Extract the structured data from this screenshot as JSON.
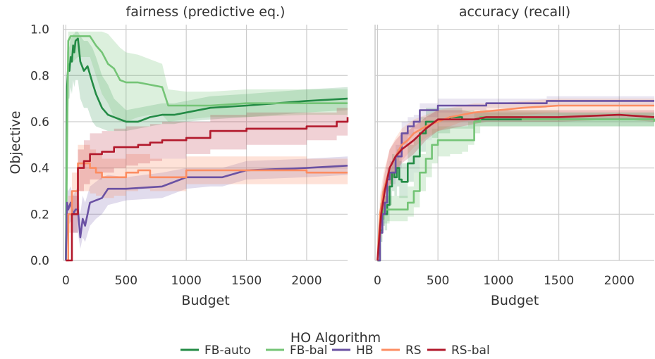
{
  "chart_data": [
    {
      "type": "line",
      "title": "fairness (predictive eq.)",
      "xlabel": "Budget",
      "ylabel": "Objective",
      "xlim": [
        -20,
        2340
      ],
      "ylim": [
        0,
        1.02
      ],
      "xticks": [
        0,
        500,
        1000,
        1500,
        2000
      ],
      "yticks": [
        0.0,
        0.2,
        0.4,
        0.6,
        0.8,
        1.0
      ],
      "xtick_labels": [
        "0",
        "500",
        "1000",
        "1500",
        "2000"
      ],
      "ytick_labels": [
        "0.0",
        "0.2",
        "0.4",
        "0.6",
        "0.8",
        "1.0"
      ],
      "grid": true,
      "series": [
        {
          "name": "FB-auto",
          "color": "#238b45",
          "band_opacity": 0.2,
          "x": [
            0,
            10,
            20,
            30,
            40,
            50,
            60,
            70,
            80,
            100,
            120,
            150,
            180,
            220,
            250,
            300,
            350,
            400,
            500,
            600,
            700,
            800,
            900,
            1000,
            1200,
            1500,
            2000,
            2340
          ],
          "y": [
            0.0,
            0.75,
            0.85,
            0.82,
            0.88,
            0.86,
            0.93,
            0.9,
            0.95,
            0.96,
            0.86,
            0.82,
            0.84,
            0.77,
            0.72,
            0.66,
            0.63,
            0.62,
            0.6,
            0.6,
            0.62,
            0.63,
            0.63,
            0.64,
            0.66,
            0.67,
            0.69,
            0.7
          ],
          "lower": [
            0.0,
            0.55,
            0.7,
            0.7,
            0.75,
            0.72,
            0.78,
            0.75,
            0.78,
            0.78,
            0.7,
            0.66,
            0.66,
            0.6,
            0.58,
            0.57,
            0.56,
            0.56,
            0.56,
            0.57,
            0.58,
            0.59,
            0.59,
            0.6,
            0.61,
            0.62,
            0.64,
            0.65
          ],
          "upper": [
            0.0,
            0.9,
            0.95,
            0.92,
            0.97,
            0.96,
            0.98,
            0.98,
            0.99,
            0.99,
            0.97,
            0.95,
            0.95,
            0.92,
            0.88,
            0.8,
            0.76,
            0.7,
            0.65,
            0.66,
            0.67,
            0.68,
            0.68,
            0.69,
            0.71,
            0.72,
            0.74,
            0.75
          ]
        },
        {
          "name": "FB-bal",
          "color": "#74c476",
          "band_opacity": 0.25,
          "x": [
            0,
            20,
            40,
            60,
            100,
            200,
            250,
            300,
            350,
            400,
            450,
            500,
            600,
            700,
            800,
            850,
            1000,
            1200,
            1500,
            2000,
            2340
          ],
          "y": [
            0.0,
            0.95,
            0.97,
            0.97,
            0.97,
            0.97,
            0.93,
            0.9,
            0.85,
            0.83,
            0.78,
            0.77,
            0.77,
            0.76,
            0.75,
            0.67,
            0.67,
            0.67,
            0.68,
            0.68,
            0.68
          ],
          "lower": [
            0.0,
            0.8,
            0.85,
            0.86,
            0.88,
            0.88,
            0.8,
            0.72,
            0.68,
            0.62,
            0.6,
            0.6,
            0.62,
            0.63,
            0.63,
            0.6,
            0.61,
            0.62,
            0.62,
            0.63,
            0.63
          ],
          "upper": [
            0.0,
            0.99,
            0.99,
            0.99,
            0.99,
            0.99,
            0.99,
            0.99,
            0.98,
            0.95,
            0.92,
            0.9,
            0.89,
            0.87,
            0.85,
            0.74,
            0.73,
            0.73,
            0.74,
            0.74,
            0.74
          ]
        },
        {
          "name": "HB",
          "color": "#6a51a3",
          "band_opacity": 0.2,
          "x": [
            0,
            10,
            20,
            40,
            60,
            80,
            100,
            120,
            140,
            160,
            200,
            250,
            300,
            350,
            500,
            800,
            1000,
            1200,
            1300,
            1500,
            2000,
            2340
          ],
          "y": [
            0.0,
            0.25,
            0.22,
            0.25,
            0.2,
            0.22,
            0.22,
            0.1,
            0.18,
            0.15,
            0.25,
            0.26,
            0.27,
            0.31,
            0.31,
            0.32,
            0.36,
            0.36,
            0.36,
            0.39,
            0.4,
            0.41
          ],
          "lower": [
            0.0,
            0.18,
            0.15,
            0.17,
            0.12,
            0.12,
            0.12,
            0.05,
            0.1,
            0.08,
            0.15,
            0.18,
            0.2,
            0.24,
            0.26,
            0.27,
            0.31,
            0.32,
            0.32,
            0.35,
            0.36,
            0.37
          ],
          "upper": [
            0.0,
            0.32,
            0.3,
            0.32,
            0.28,
            0.3,
            0.32,
            0.2,
            0.28,
            0.25,
            0.32,
            0.34,
            0.36,
            0.37,
            0.36,
            0.38,
            0.4,
            0.4,
            0.4,
            0.43,
            0.44,
            0.45
          ]
        },
        {
          "name": "RS",
          "color": "#fc8d62",
          "band_opacity": 0.25,
          "x": [
            0,
            20,
            50,
            100,
            150,
            200,
            250,
            300,
            400,
            500,
            600,
            700,
            800,
            1000,
            1200,
            1500,
            2000,
            2340
          ],
          "y": [
            0.0,
            0.2,
            0.3,
            0.42,
            0.42,
            0.4,
            0.38,
            0.36,
            0.36,
            0.38,
            0.39,
            0.36,
            0.36,
            0.39,
            0.39,
            0.39,
            0.38,
            0.38
          ],
          "lower": [
            0.0,
            0.12,
            0.2,
            0.3,
            0.3,
            0.29,
            0.28,
            0.27,
            0.28,
            0.3,
            0.31,
            0.3,
            0.3,
            0.33,
            0.33,
            0.33,
            0.33,
            0.33
          ],
          "upper": [
            0.0,
            0.28,
            0.38,
            0.5,
            0.5,
            0.48,
            0.46,
            0.44,
            0.44,
            0.46,
            0.46,
            0.44,
            0.44,
            0.45,
            0.45,
            0.45,
            0.44,
            0.44
          ],
          "step": true
        },
        {
          "name": "RS-bal",
          "color": "#b2182b",
          "band_opacity": 0.2,
          "x": [
            0,
            50,
            100,
            150,
            200,
            300,
            400,
            500,
            600,
            700,
            800,
            1000,
            1200,
            1500,
            2000,
            2250,
            2340
          ],
          "y": [
            0.0,
            0.2,
            0.4,
            0.43,
            0.46,
            0.47,
            0.49,
            0.49,
            0.5,
            0.51,
            0.52,
            0.53,
            0.56,
            0.57,
            0.58,
            0.6,
            0.62
          ],
          "lower": [
            0.0,
            0.12,
            0.3,
            0.33,
            0.35,
            0.38,
            0.4,
            0.41,
            0.42,
            0.43,
            0.44,
            0.46,
            0.48,
            0.5,
            0.52,
            0.54,
            0.56
          ],
          "upper": [
            0.0,
            0.28,
            0.48,
            0.52,
            0.55,
            0.56,
            0.57,
            0.58,
            0.58,
            0.59,
            0.6,
            0.6,
            0.63,
            0.64,
            0.64,
            0.66,
            0.68
          ],
          "step": true
        }
      ]
    },
    {
      "type": "line",
      "title": "accuracy (recall)",
      "xlabel": "Budget",
      "ylabel": "",
      "xlim": [
        -20,
        2290
      ],
      "ylim": [
        0,
        1.02
      ],
      "xticks": [
        0,
        500,
        1000,
        1500,
        2000
      ],
      "yticks": [
        0.0,
        0.2,
        0.4,
        0.6,
        0.8,
        1.0
      ],
      "xtick_labels": [
        "0",
        "500",
        "1000",
        "1500",
        "2000"
      ],
      "grid": true,
      "series": [
        {
          "name": "FB-auto",
          "color": "#238b45",
          "band_opacity": 0.2,
          "x": [
            0,
            20,
            40,
            60,
            80,
            100,
            120,
            140,
            160,
            180,
            200,
            250,
            300,
            350,
            400,
            450,
            500,
            600,
            700,
            800,
            1000,
            1200,
            1500,
            2000,
            2290
          ],
          "y": [
            0.0,
            0.13,
            0.22,
            0.2,
            0.24,
            0.32,
            0.38,
            0.36,
            0.4,
            0.35,
            0.34,
            0.42,
            0.45,
            0.55,
            0.6,
            0.6,
            0.61,
            0.62,
            0.61,
            0.61,
            0.61,
            0.61,
            0.61,
            0.61,
            0.61
          ],
          "lower": [
            0.0,
            0.08,
            0.15,
            0.13,
            0.17,
            0.24,
            0.3,
            0.28,
            0.32,
            0.27,
            0.27,
            0.34,
            0.38,
            0.47,
            0.52,
            0.53,
            0.55,
            0.57,
            0.57,
            0.58,
            0.58,
            0.58,
            0.58,
            0.58,
            0.58
          ],
          "upper": [
            0.0,
            0.2,
            0.3,
            0.28,
            0.32,
            0.4,
            0.46,
            0.44,
            0.48,
            0.43,
            0.42,
            0.5,
            0.53,
            0.62,
            0.66,
            0.66,
            0.66,
            0.66,
            0.65,
            0.64,
            0.64,
            0.64,
            0.64,
            0.64,
            0.64
          ],
          "step": true
        },
        {
          "name": "FB-bal",
          "color": "#74c476",
          "band_opacity": 0.25,
          "x": [
            0,
            20,
            50,
            100,
            200,
            250,
            300,
            350,
            400,
            450,
            500,
            600,
            700,
            750,
            800,
            850,
            1000,
            1200,
            1500,
            2000,
            2290
          ],
          "y": [
            0.0,
            0.18,
            0.22,
            0.22,
            0.22,
            0.25,
            0.3,
            0.38,
            0.44,
            0.5,
            0.52,
            0.52,
            0.52,
            0.52,
            0.6,
            0.62,
            0.62,
            0.61,
            0.61,
            0.61,
            0.6
          ],
          "lower": [
            0.0,
            0.12,
            0.16,
            0.17,
            0.17,
            0.19,
            0.23,
            0.3,
            0.36,
            0.42,
            0.45,
            0.46,
            0.47,
            0.5,
            0.55,
            0.58,
            0.58,
            0.58,
            0.58,
            0.58,
            0.58
          ],
          "upper": [
            0.0,
            0.25,
            0.28,
            0.28,
            0.28,
            0.32,
            0.38,
            0.46,
            0.52,
            0.57,
            0.58,
            0.58,
            0.58,
            0.6,
            0.64,
            0.65,
            0.65,
            0.65,
            0.64,
            0.64,
            0.63
          ],
          "step": true
        },
        {
          "name": "HB",
          "color": "#6a51a3",
          "band_opacity": 0.15,
          "x": [
            0,
            20,
            40,
            60,
            80,
            100,
            150,
            200,
            250,
            300,
            350,
            400,
            500,
            600,
            700,
            800,
            900,
            1000,
            1200,
            1400,
            1600,
            2000,
            2290
          ],
          "y": [
            0.0,
            0.12,
            0.2,
            0.25,
            0.35,
            0.38,
            0.45,
            0.55,
            0.58,
            0.6,
            0.65,
            0.65,
            0.67,
            0.67,
            0.67,
            0.67,
            0.68,
            0.68,
            0.68,
            0.69,
            0.69,
            0.69,
            0.69
          ],
          "lower": [
            0.0,
            0.08,
            0.15,
            0.2,
            0.3,
            0.33,
            0.4,
            0.5,
            0.54,
            0.57,
            0.61,
            0.62,
            0.64,
            0.64,
            0.65,
            0.65,
            0.66,
            0.66,
            0.66,
            0.67,
            0.67,
            0.67,
            0.67
          ],
          "upper": [
            0.0,
            0.16,
            0.25,
            0.3,
            0.4,
            0.43,
            0.5,
            0.6,
            0.62,
            0.63,
            0.68,
            0.68,
            0.7,
            0.7,
            0.7,
            0.7,
            0.7,
            0.7,
            0.7,
            0.71,
            0.71,
            0.71,
            0.71
          ],
          "step": true
        },
        {
          "name": "RS",
          "color": "#fc8d62",
          "band_opacity": 0.2,
          "x": [
            0,
            20,
            50,
            100,
            150,
            200,
            250,
            300,
            400,
            500,
            600,
            700,
            800,
            1000,
            1200,
            1500,
            2000,
            2290
          ],
          "y": [
            0.0,
            0.2,
            0.3,
            0.4,
            0.45,
            0.5,
            0.52,
            0.55,
            0.58,
            0.6,
            0.62,
            0.63,
            0.64,
            0.65,
            0.66,
            0.67,
            0.67,
            0.67
          ],
          "lower": [
            0.0,
            0.12,
            0.22,
            0.32,
            0.38,
            0.43,
            0.46,
            0.49,
            0.53,
            0.56,
            0.58,
            0.6,
            0.61,
            0.62,
            0.63,
            0.64,
            0.64,
            0.64
          ],
          "upper": [
            0.0,
            0.28,
            0.38,
            0.48,
            0.53,
            0.57,
            0.59,
            0.61,
            0.63,
            0.65,
            0.66,
            0.67,
            0.68,
            0.68,
            0.69,
            0.7,
            0.7,
            0.7
          ]
        },
        {
          "name": "RS-bal",
          "color": "#b2182b",
          "band_opacity": 0.2,
          "x": [
            0,
            30,
            60,
            100,
            150,
            200,
            250,
            300,
            400,
            500,
            600,
            700,
            800,
            900,
            1000,
            1200,
            1500,
            2000,
            2290
          ],
          "y": [
            0.0,
            0.2,
            0.3,
            0.4,
            0.45,
            0.48,
            0.5,
            0.52,
            0.57,
            0.61,
            0.61,
            0.61,
            0.61,
            0.62,
            0.62,
            0.62,
            0.62,
            0.63,
            0.62
          ],
          "lower": [
            0.0,
            0.12,
            0.22,
            0.32,
            0.38,
            0.42,
            0.44,
            0.46,
            0.52,
            0.56,
            0.57,
            0.58,
            0.59,
            0.6,
            0.6,
            0.6,
            0.6,
            0.61,
            0.6
          ],
          "upper": [
            0.0,
            0.28,
            0.38,
            0.48,
            0.52,
            0.55,
            0.56,
            0.58,
            0.62,
            0.65,
            0.65,
            0.65,
            0.64,
            0.65,
            0.65,
            0.65,
            0.65,
            0.65,
            0.65
          ]
        }
      ]
    }
  ],
  "legend": {
    "title": "HO Algorithm",
    "placement": "bottom-center",
    "items": [
      {
        "label": "FB-auto",
        "color": "#238b45"
      },
      {
        "label": "FB-bal",
        "color": "#74c476"
      },
      {
        "label": "HB",
        "color": "#6a51a3"
      },
      {
        "label": "RS",
        "color": "#fc8d62"
      },
      {
        "label": "RS-bal",
        "color": "#b2182b"
      }
    ]
  }
}
